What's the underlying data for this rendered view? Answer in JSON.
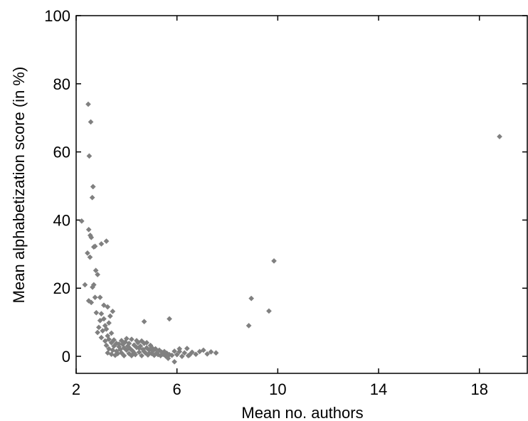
{
  "chart_data": {
    "type": "scatter",
    "title": "",
    "xlabel": "Mean no. authors",
    "ylabel": "Mean alphabetization score (in %)",
    "xlim": [
      2,
      19.9
    ],
    "ylim": [
      -5,
      100
    ],
    "xticks": [
      2,
      6,
      10,
      14,
      18
    ],
    "yticks": [
      0,
      20,
      40,
      60,
      80,
      100
    ],
    "xtick_labels": [
      "2",
      "6",
      "10",
      "14",
      "18"
    ],
    "ytick_labels": [
      "0",
      "20",
      "40",
      "60",
      "80",
      "100"
    ],
    "grid": false,
    "legend": "none",
    "marker": "diamond",
    "marker_color": "#808080",
    "points": [
      [
        2.48,
        74.0
      ],
      [
        2.58,
        68.8
      ],
      [
        2.52,
        58.8
      ],
      [
        2.67,
        49.8
      ],
      [
        2.64,
        46.6
      ],
      [
        2.22,
        39.7
      ],
      [
        2.5,
        37.2
      ],
      [
        2.56,
        35.5
      ],
      [
        2.6,
        34.9
      ],
      [
        3.2,
        33.8
      ],
      [
        3.0,
        33.0
      ],
      [
        2.7,
        32.1
      ],
      [
        2.75,
        32.3
      ],
      [
        2.45,
        30.3
      ],
      [
        2.55,
        29.1
      ],
      [
        2.78,
        25.2
      ],
      [
        2.85,
        24.0
      ],
      [
        2.35,
        21.0
      ],
      [
        2.7,
        21.0
      ],
      [
        2.65,
        20.3
      ],
      [
        2.95,
        17.3
      ],
      [
        2.5,
        16.3
      ],
      [
        2.6,
        15.8
      ],
      [
        2.75,
        17.3
      ],
      [
        3.1,
        15.0
      ],
      [
        3.25,
        14.5
      ],
      [
        3.45,
        13.2
      ],
      [
        3.0,
        12.5
      ],
      [
        2.8,
        12.8
      ],
      [
        3.35,
        11.8
      ],
      [
        3.1,
        11.0
      ],
      [
        2.95,
        10.5
      ],
      [
        3.3,
        9.8
      ],
      [
        3.15,
        9.0
      ],
      [
        2.9,
        8.5
      ],
      [
        3.2,
        8.0
      ],
      [
        3.05,
        7.5
      ],
      [
        2.85,
        7.0
      ],
      [
        3.4,
        6.8
      ],
      [
        3.25,
        6.0
      ],
      [
        3.0,
        5.5
      ],
      [
        3.3,
        5.0
      ],
      [
        3.5,
        4.8
      ],
      [
        3.15,
        4.5
      ],
      [
        3.4,
        4.0
      ],
      [
        3.6,
        3.8
      ],
      [
        3.2,
        3.2
      ],
      [
        3.5,
        3.0
      ],
      [
        3.7,
        2.8
      ],
      [
        3.3,
        2.2
      ],
      [
        3.45,
        1.8
      ],
      [
        3.6,
        1.5
      ],
      [
        3.25,
        1.0
      ],
      [
        3.4,
        0.6
      ],
      [
        3.55,
        0.3
      ],
      [
        3.75,
        2.0
      ],
      [
        3.8,
        1.0
      ],
      [
        3.85,
        3.5
      ],
      [
        3.9,
        2.5
      ],
      [
        3.95,
        4.2
      ],
      [
        4.0,
        1.8
      ],
      [
        4.05,
        3.0
      ],
      [
        4.1,
        0.8
      ],
      [
        4.15,
        2.2
      ],
      [
        4.2,
        5.0
      ],
      [
        4.25,
        1.5
      ],
      [
        4.3,
        3.3
      ],
      [
        4.35,
        0.5
      ],
      [
        4.4,
        2.6
      ],
      [
        4.45,
        4.0
      ],
      [
        4.5,
        1.2
      ],
      [
        4.55,
        3.0
      ],
      [
        4.6,
        0.2
      ],
      [
        4.65,
        2.0
      ],
      [
        4.7,
        3.8
      ],
      [
        4.75,
        1.0
      ],
      [
        4.8,
        2.5
      ],
      [
        4.85,
        0.4
      ],
      [
        4.9,
        1.8
      ],
      [
        4.95,
        3.2
      ],
      [
        5.0,
        0.8
      ],
      [
        5.05,
        1.6
      ],
      [
        5.1,
        0.3
      ],
      [
        5.15,
        2.2
      ],
      [
        5.2,
        1.0
      ],
      [
        5.25,
        0.5
      ],
      [
        5.3,
        1.8
      ],
      [
        5.35,
        0.2
      ],
      [
        5.4,
        1.2
      ],
      [
        5.45,
        0.6
      ],
      [
        5.5,
        1.4
      ],
      [
        5.55,
        0.1
      ],
      [
        5.6,
        0.9
      ],
      [
        5.65,
        -0.6
      ],
      [
        5.7,
        0.5
      ],
      [
        3.8,
        4.6
      ],
      [
        3.9,
        0.2
      ],
      [
        4.0,
        5.2
      ],
      [
        4.1,
        3.8
      ],
      [
        4.2,
        0.2
      ],
      [
        4.3,
        1.0
      ],
      [
        4.4,
        4.6
      ],
      [
        4.5,
        2.4
      ],
      [
        4.6,
        4.5
      ],
      [
        4.7,
        1.4
      ],
      [
        4.8,
        4.0
      ],
      [
        4.9,
        0.9
      ],
      [
        5.0,
        2.6
      ],
      [
        3.65,
        0.8
      ],
      [
        3.7,
        3.6
      ],
      [
        4.7,
        10.2
      ],
      [
        5.7,
        11.0
      ],
      [
        5.8,
        0.3
      ],
      [
        5.9,
        1.5
      ],
      [
        5.9,
        -1.6
      ],
      [
        6.0,
        0.5
      ],
      [
        6.1,
        1.4
      ],
      [
        6.2,
        0.0
      ],
      [
        6.3,
        1.0
      ],
      [
        6.4,
        2.3
      ],
      [
        6.5,
        0.4
      ],
      [
        6.6,
        1.2
      ],
      [
        6.75,
        0.6
      ],
      [
        6.9,
        1.4
      ],
      [
        7.05,
        1.8
      ],
      [
        7.2,
        0.7
      ],
      [
        7.35,
        1.3
      ],
      [
        7.55,
        1.0
      ],
      [
        6.45,
        0.2
      ],
      [
        6.1,
        2.2
      ],
      [
        8.85,
        9.0
      ],
      [
        8.95,
        17.0
      ],
      [
        9.65,
        13.3
      ],
      [
        9.85,
        28.0
      ],
      [
        18.8,
        64.5
      ]
    ]
  }
}
